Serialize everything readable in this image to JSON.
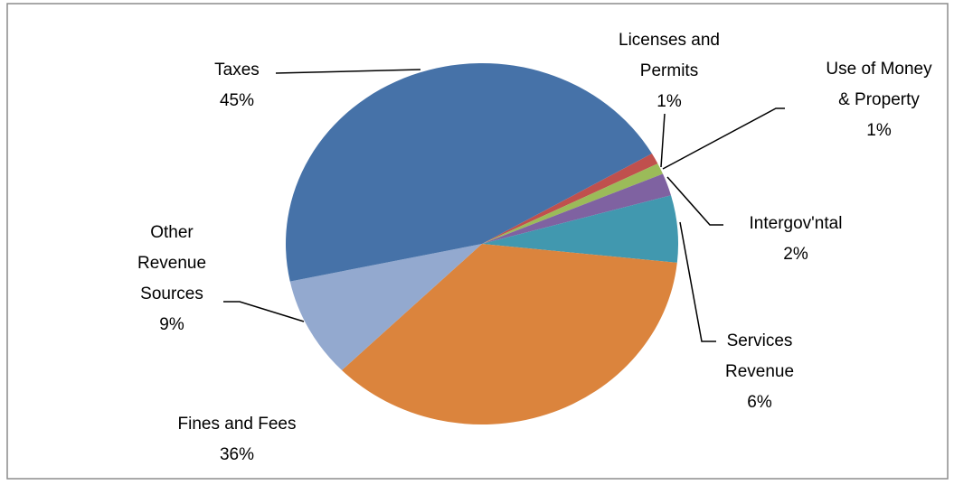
{
  "chart_data": {
    "type": "pie",
    "categories": [
      "Licenses and Permits",
      "Use of Money & Property",
      "Intergov'ntal",
      "Services Revenue",
      "Fines and Fees",
      "Other Revenue Sources",
      "Taxes"
    ],
    "values": [
      1,
      1,
      2,
      6,
      36,
      9,
      45
    ],
    "value_labels": [
      "1%",
      "1%",
      "2%",
      "6%",
      "36%",
      "9%",
      "45%"
    ],
    "colors": [
      "#c0504d",
      "#9bbb59",
      "#7f62a1",
      "#4198af",
      "#db843d",
      "#93a9cf",
      "#4672a8"
    ]
  }
}
